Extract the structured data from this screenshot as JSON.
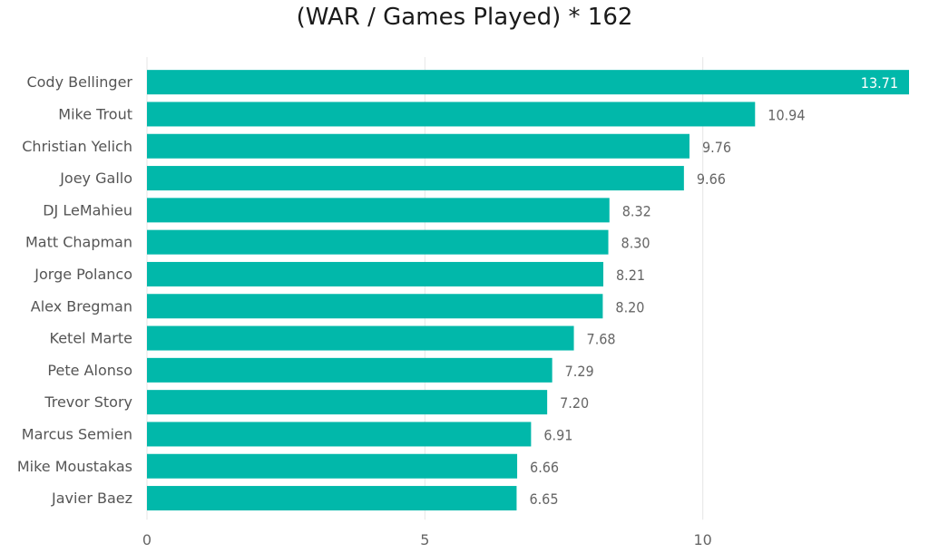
{
  "chart_data": {
    "type": "bar",
    "orientation": "horizontal",
    "title": "(WAR / Games Played) * 162",
    "xlabel": "",
    "ylabel": "",
    "xlim": [
      0,
      13.71
    ],
    "xticks": [
      0,
      5,
      10
    ],
    "grid": true,
    "legend": "none",
    "bar_color": "#01B8AA",
    "categories": [
      "Cody Bellinger",
      "Mike Trout",
      "Christian Yelich",
      "Joey Gallo",
      "DJ LeMahieu",
      "Matt Chapman",
      "Jorge Polanco",
      "Alex Bregman",
      "Ketel Marte",
      "Pete Alonso",
      "Trevor Story",
      "Marcus Semien",
      "Mike Moustakas",
      "Javier Baez"
    ],
    "values": [
      13.71,
      10.94,
      9.76,
      9.66,
      8.32,
      8.3,
      8.21,
      8.2,
      7.68,
      7.29,
      7.2,
      6.91,
      6.66,
      6.65
    ],
    "value_labels": [
      "13.71",
      "10.94",
      "9.76",
      "9.66",
      "8.32",
      "8.30",
      "8.21",
      "8.20",
      "7.68",
      "7.29",
      "7.20",
      "6.91",
      "6.66",
      "6.65"
    ]
  }
}
